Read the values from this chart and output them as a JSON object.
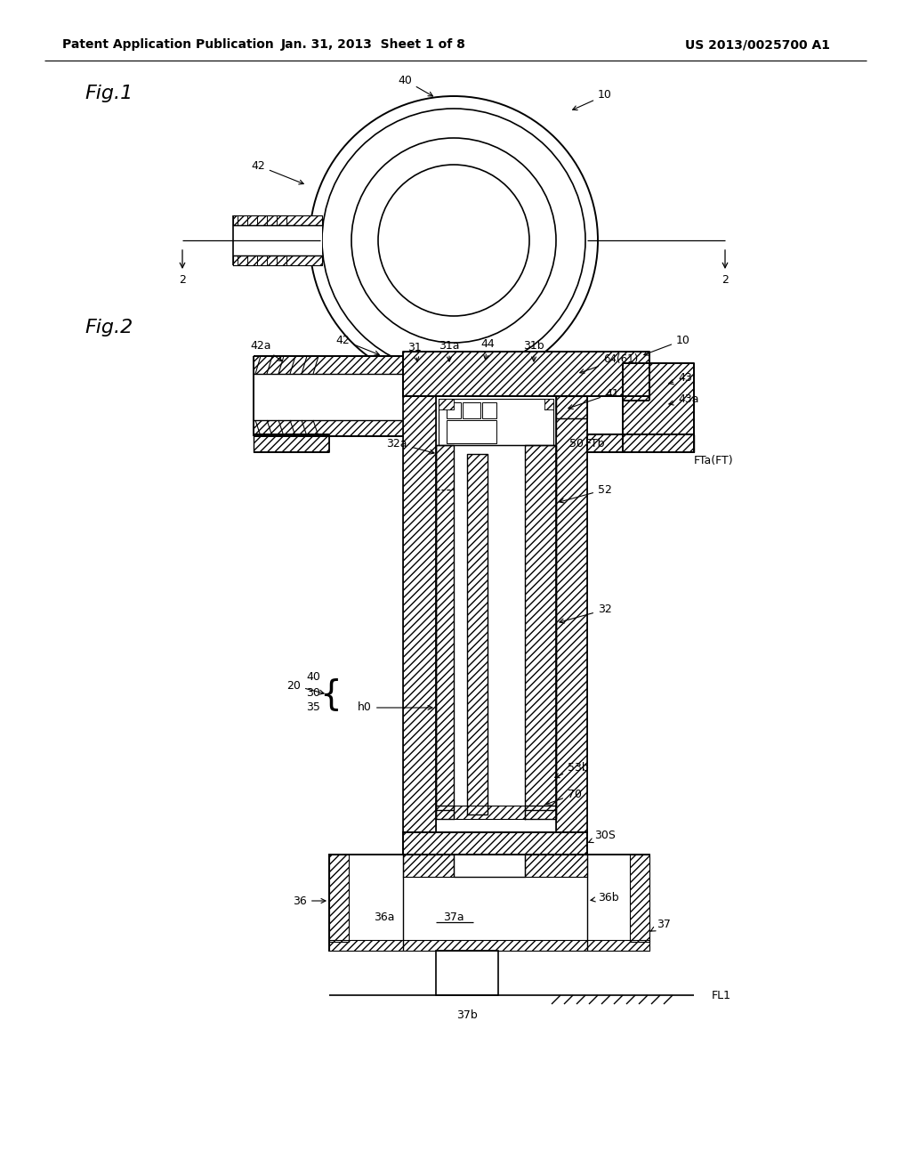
{
  "background_color": "#ffffff",
  "header_left": "Patent Application Publication",
  "header_center": "Jan. 31, 2013  Sheet 1 of 8",
  "header_right": "US 2013/0025700 A1",
  "fig1_label": "Fig.1",
  "fig2_label": "Fig.2"
}
